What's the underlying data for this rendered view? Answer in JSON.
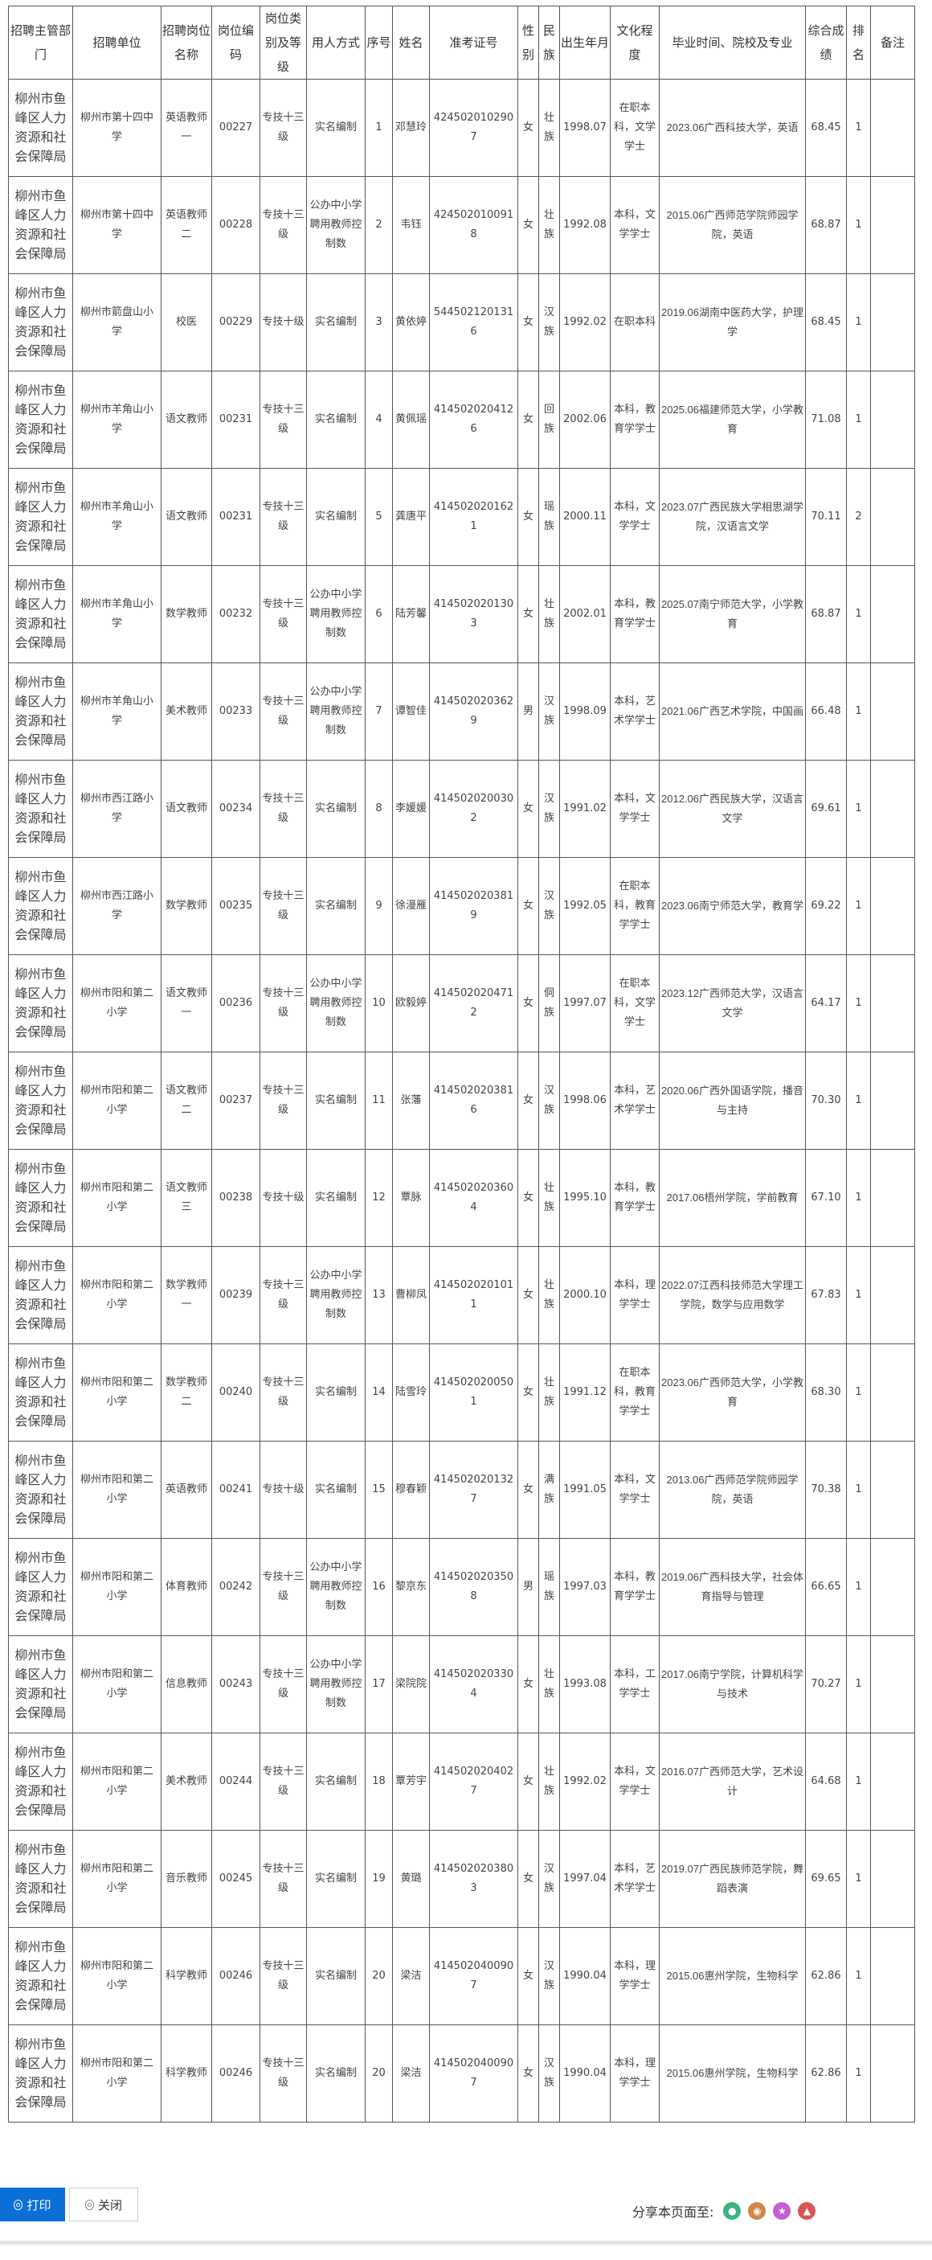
{
  "table": {
    "headers": [
      "招聘主管部门",
      "招聘单位",
      "招聘岗位名称",
      "岗位编码",
      "岗位类别及等级",
      "用人方式",
      "序号",
      "姓名",
      "准考证号",
      "性别",
      "民族",
      "出生年月",
      "文化程度",
      "毕业时间、院校及专业",
      "综合成绩",
      "排名",
      "备注"
    ],
    "rows": [
      [
        "柳州市鱼峰区人力资源和社会保障局",
        "柳州市第十四中学",
        "英语教师一",
        "00227",
        "专技十三级",
        "实名编制",
        "1",
        "邓慧玲",
        "4245020102907",
        "女",
        "壮族",
        "1998.07",
        "在职本科，文学学士",
        "2023.06广西科技大学，英语",
        "68.45",
        "1",
        ""
      ],
      [
        "柳州市鱼峰区人力资源和社会保障局",
        "柳州市第十四中学",
        "英语教师二",
        "00228",
        "专技十三级",
        "公办中小学聘用教师控制数",
        "2",
        "韦钰",
        "4245020100918",
        "女",
        "壮族",
        "1992.08",
        "本科，文学学士",
        "2015.06广西师范学院师园学院，英语",
        "68.87",
        "1",
        ""
      ],
      [
        "柳州市鱼峰区人力资源和社会保障局",
        "柳州市箭盘山小学",
        "校医",
        "00229",
        "专技十级",
        "实名编制",
        "3",
        "黄依婷",
        "5445021201316",
        "女",
        "汉族",
        "1992.02",
        "在职本科",
        "2019.06湖南中医药大学，护理学",
        "68.45",
        "1",
        ""
      ],
      [
        "柳州市鱼峰区人力资源和社会保障局",
        "柳州市羊角山小学",
        "语文教师",
        "00231",
        "专技十三级",
        "实名编制",
        "4",
        "黄佩瑶",
        "4145020204126",
        "女",
        "回族",
        "2002.06",
        "本科，教育学学士",
        "2025.06福建师范大学，小学教育",
        "71.08",
        "1",
        ""
      ],
      [
        "柳州市鱼峰区人力资源和社会保障局",
        "柳州市羊角山小学",
        "语文教师",
        "00231",
        "专技十三级",
        "实名编制",
        "5",
        "龚唐平",
        "4145020201621",
        "女",
        "瑶族",
        "2000.11",
        "本科，文学学士",
        "2023.07广西民族大学相思湖学院，汉语言文学",
        "70.11",
        "2",
        ""
      ],
      [
        "柳州市鱼峰区人力资源和社会保障局",
        "柳州市羊角山小学",
        "数学教师",
        "00232",
        "专技十三级",
        "公办中小学聘用教师控制数",
        "6",
        "陆芳馨",
        "4145020201303",
        "女",
        "壮族",
        "2002.01",
        "本科，教育学学士",
        "2025.07南宁师范大学，小学教育",
        "68.87",
        "1",
        ""
      ],
      [
        "柳州市鱼峰区人力资源和社会保障局",
        "柳州市羊角山小学",
        "美术教师",
        "00233",
        "专技十三级",
        "公办中小学聘用教师控制数",
        "7",
        "谭智佳",
        "4145020203629",
        "男",
        "汉族",
        "1998.09",
        "本科，艺术学学士",
        "2021.06广西艺术学院，中国画",
        "66.48",
        "1",
        ""
      ],
      [
        "柳州市鱼峰区人力资源和社会保障局",
        "柳州市西江路小学",
        "语文教师",
        "00234",
        "专技十三级",
        "实名编制",
        "8",
        "李媛媛",
        "4145020200302",
        "女",
        "汉族",
        "1991.02",
        "本科，文学学士",
        "2012.06广西民族大学，汉语言文学",
        "69.61",
        "1",
        ""
      ],
      [
        "柳州市鱼峰区人力资源和社会保障局",
        "柳州市西江路小学",
        "数学教师",
        "00235",
        "专技十三级",
        "实名编制",
        "9",
        "徐漫雁",
        "4145020203819",
        "女",
        "汉族",
        "1992.05",
        "在职本科，教育学学士",
        "2023.06南宁师范大学，教育学",
        "69.22",
        "1",
        ""
      ],
      [
        "柳州市鱼峰区人力资源和社会保障局",
        "柳州市阳和第二小学",
        "语文教师一",
        "00236",
        "专技十三级",
        "公办中小学聘用教师控制数",
        "10",
        "欧毅婷",
        "4145020204712",
        "女",
        "侗族",
        "1997.07",
        "在职本科，文学学士",
        "2023.12广西师范大学，汉语言文学",
        "64.17",
        "1",
        ""
      ],
      [
        "柳州市鱼峰区人力资源和社会保障局",
        "柳州市阳和第二小学",
        "语文教师二",
        "00237",
        "专技十三级",
        "实名编制",
        "11",
        "张藩",
        "4145020203816",
        "女",
        "汉族",
        "1998.06",
        "本科，艺术学学士",
        "2020.06广西外国语学院，播音与主持",
        "70.30",
        "1",
        ""
      ],
      [
        "柳州市鱼峰区人力资源和社会保障局",
        "柳州市阳和第二小学",
        "语文教师三",
        "00238",
        "专技十级",
        "实名编制",
        "12",
        "覃脉",
        "4145020203604",
        "女",
        "壮族",
        "1995.10",
        "本科，教育学学士",
        "2017.06梧州学院，学前教育",
        "67.10",
        "1",
        ""
      ],
      [
        "柳州市鱼峰区人力资源和社会保障局",
        "柳州市阳和第二小学",
        "数学教师一",
        "00239",
        "专技十三级",
        "公办中小学聘用教师控制数",
        "13",
        "曹柳凤",
        "4145020201011",
        "女",
        "壮族",
        "2000.10",
        "本科，理学学士",
        "2022.07江西科技师范大学理工学院，数学与应用数学",
        "67.83",
        "1",
        ""
      ],
      [
        "柳州市鱼峰区人力资源和社会保障局",
        "柳州市阳和第二小学",
        "数学教师二",
        "00240",
        "专技十三级",
        "实名编制",
        "14",
        "陆雪玲",
        "4145020200501",
        "女",
        "壮族",
        "1991.12",
        "在职本科，教育学学士",
        "2023.06广西师范大学，小学教育",
        "68.30",
        "1",
        ""
      ],
      [
        "柳州市鱼峰区人力资源和社会保障局",
        "柳州市阳和第二小学",
        "英语教师",
        "00241",
        "专技十级",
        "实名编制",
        "15",
        "穆春颖",
        "4145020201327",
        "女",
        "满族",
        "1991.05",
        "本科，文学学士",
        "2013.06广西师范学院师园学院，英语",
        "70.38",
        "1",
        ""
      ],
      [
        "柳州市鱼峰区人力资源和社会保障局",
        "柳州市阳和第二小学",
        "体育教师",
        "00242",
        "专技十三级",
        "公办中小学聘用教师控制数",
        "16",
        "黎京东",
        "4145020203508",
        "男",
        "瑶族",
        "1997.03",
        "本科，教育学学士",
        "2019.06广西科技大学，社会体育指导与管理",
        "66.65",
        "1",
        ""
      ],
      [
        "柳州市鱼峰区人力资源和社会保障局",
        "柳州市阳和第二小学",
        "信息教师",
        "00243",
        "专技十三级",
        "公办中小学聘用教师控制数",
        "17",
        "梁院院",
        "4145020203304",
        "女",
        "壮族",
        "1993.08",
        "本科，工学学士",
        "2017.06南宁学院，计算机科学与技术",
        "70.27",
        "1",
        ""
      ],
      [
        "柳州市鱼峰区人力资源和社会保障局",
        "柳州市阳和第二小学",
        "美术教师",
        "00244",
        "专技十三级",
        "实名编制",
        "18",
        "覃芳宇",
        "4145020204027",
        "女",
        "壮族",
        "1992.02",
        "本科，文学学士",
        "2016.07广西师范大学，艺术设计",
        "64.68",
        "1",
        ""
      ],
      [
        "柳州市鱼峰区人力资源和社会保障局",
        "柳州市阳和第二小学",
        "音乐教师",
        "00245",
        "专技十三级",
        "实名编制",
        "19",
        "黄璐",
        "4145020203803",
        "女",
        "汉族",
        "1997.04",
        "本科，艺术学学士",
        "2019.07广西民族师范学院，舞蹈表演",
        "69.65",
        "1",
        ""
      ],
      [
        "柳州市鱼峰区人力资源和社会保障局",
        "柳州市阳和第二小学",
        "科学教师",
        "00246",
        "专技十三级",
        "实名编制",
        "20",
        "梁洁",
        "4145020400907",
        "女",
        "汉族",
        "1990.04",
        "本科，理学学士",
        "2015.06惠州学院，生物科学",
        "62.86",
        "1",
        ""
      ],
      [
        "柳州市鱼峰区人力资源和社会保障局",
        "柳州市阳和第二小学",
        "科学教师",
        "00246",
        "专技十三级",
        "实名编制",
        "20",
        "梁洁",
        "4145020400907",
        "女",
        "汉族",
        "1990.04",
        "本科，理学学士",
        "2015.06惠州学院，生物科学",
        "62.86",
        "1",
        ""
      ]
    ]
  },
  "footer": {
    "print_label": "打印",
    "close_label": "关闭",
    "share_label": "分享本页面至:",
    "share_targets": [
      {
        "icon": "wechat-icon",
        "color": "#3fb27f"
      },
      {
        "icon": "weibo-icon",
        "color": "#d0874a"
      },
      {
        "icon": "qzone-icon",
        "color": "#c45fcf"
      },
      {
        "icon": "qq-icon",
        "color": "#d95656"
      }
    ]
  }
}
